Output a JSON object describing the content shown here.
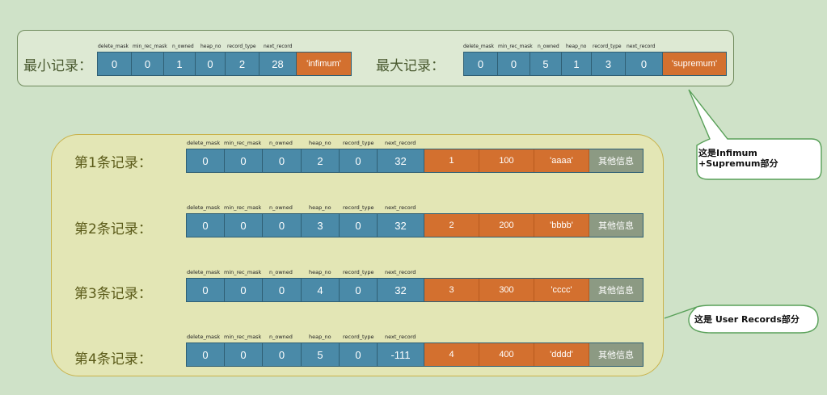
{
  "headers": [
    "delete_mask",
    "min_rec_mask",
    "n_owned",
    "heap_no",
    "record_type",
    "next_record"
  ],
  "infimum": {
    "label": "最小记录：",
    "values": [
      "0",
      "0",
      "1",
      "0",
      "2",
      "28"
    ],
    "extra": "'infimum'"
  },
  "supremum": {
    "label": "最大记录：",
    "values": [
      "0",
      "0",
      "5",
      "1",
      "3",
      "0"
    ],
    "extra": "'supremum'"
  },
  "records": [
    {
      "label": "第1条记录：",
      "values": [
        "0",
        "0",
        "0",
        "2",
        "0",
        "32"
      ],
      "cols": [
        "1",
        "100",
        "'aaaa'"
      ],
      "other": "其他信息"
    },
    {
      "label": "第2条记录：",
      "values": [
        "0",
        "0",
        "0",
        "3",
        "0",
        "32"
      ],
      "cols": [
        "2",
        "200",
        "'bbbb'"
      ],
      "other": "其他信息"
    },
    {
      "label": "第3条记录：",
      "values": [
        "0",
        "0",
        "0",
        "4",
        "0",
        "32"
      ],
      "cols": [
        "3",
        "300",
        "'cccc'"
      ],
      "other": "其他信息"
    },
    {
      "label": "第4条记录：",
      "values": [
        "0",
        "0",
        "0",
        "5",
        "0",
        "-111"
      ],
      "cols": [
        "4",
        "400",
        "'dddd'"
      ],
      "other": "其他信息"
    }
  ],
  "callouts": {
    "infimum_supremum": "这是Infimum +Supremum部分",
    "user_records": "这是 User Records部分"
  },
  "colors": {
    "background": "#cfe2c8",
    "header_cell": "#4a8aa8",
    "data_cell": "#d3702f",
    "other_cell": "#8c9a83"
  }
}
